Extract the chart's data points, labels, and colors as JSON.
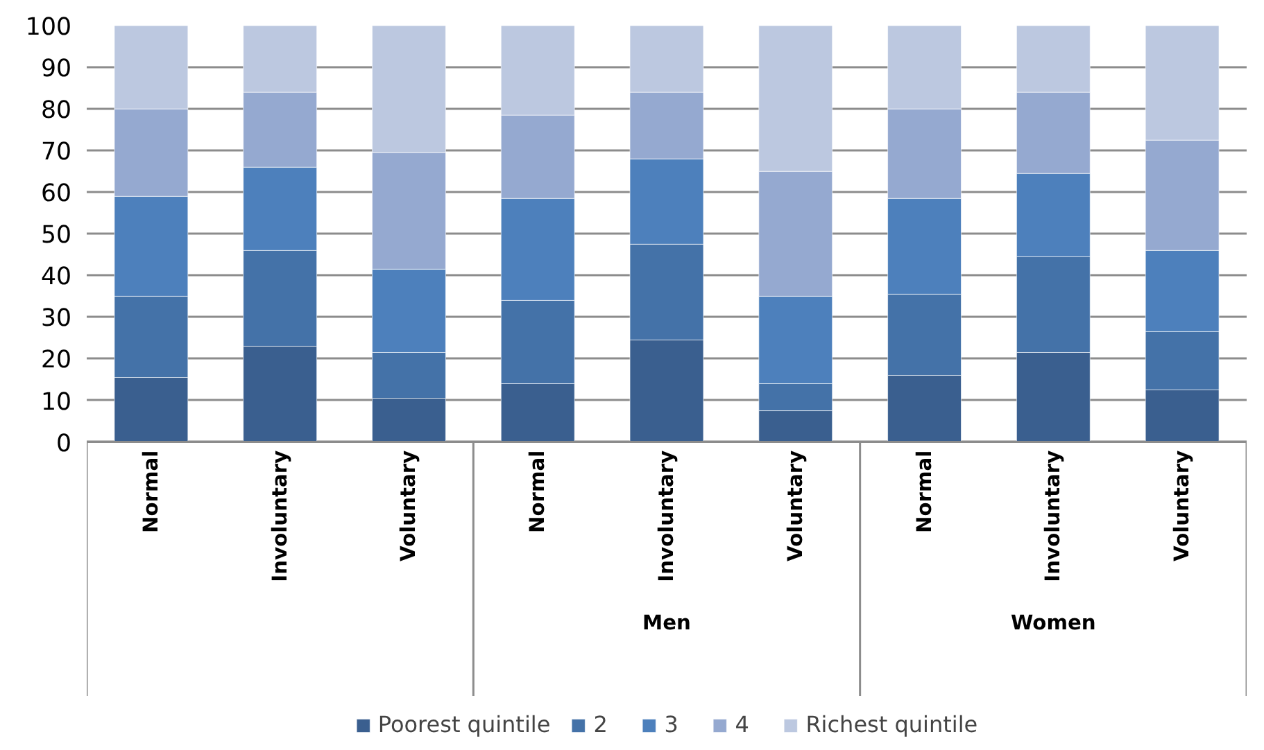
{
  "chart_data": {
    "type": "bar",
    "stacked": true,
    "categories": [
      "Normal",
      "Involuntary",
      "Voluntary",
      "Normal",
      "Involuntary",
      "Voluntary",
      "Normal",
      "Involuntary",
      "Voluntary"
    ],
    "annotations": [
      "Men",
      "Women"
    ],
    "series": [
      {
        "name": "Poorest quintile",
        "color": "#3a5f8f",
        "values": [
          15.5,
          23,
          10.5,
          14,
          24.5,
          7.5,
          16,
          21.5,
          12.5
        ]
      },
      {
        "name": "2",
        "color": "#4472a8",
        "values": [
          19.5,
          23,
          11,
          20,
          23,
          6.5,
          19.5,
          23,
          14
        ]
      },
      {
        "name": "3",
        "color": "#4d80bc",
        "values": [
          24,
          20,
          20,
          24.5,
          20.5,
          21,
          23,
          20,
          19.5
        ]
      },
      {
        "name": "4",
        "color": "#95a9d0",
        "values": [
          21,
          18,
          28,
          20,
          16,
          30,
          21.5,
          19.5,
          26.5
        ]
      },
      {
        "name": "Richest quintile",
        "color": "#bcc8e0",
        "values": [
          20,
          16,
          30.5,
          21.5,
          16,
          35,
          20,
          16,
          27.5
        ]
      }
    ],
    "ylim": [
      0,
      100
    ],
    "yticks": [
      0,
      10,
      20,
      30,
      40,
      50,
      60,
      70,
      80,
      90,
      100
    ],
    "grid": "y",
    "legend": "bottom"
  }
}
